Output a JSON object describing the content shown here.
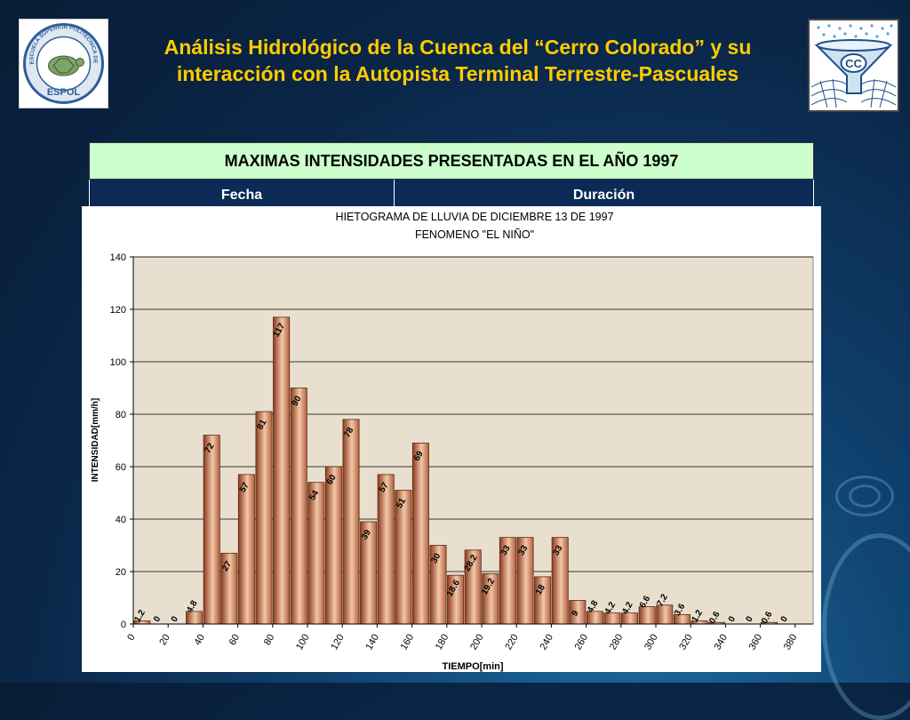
{
  "header": {
    "title_line1": "Análisis Hidrológico de la Cuenca del “Cerro Colorado” y su",
    "title_line2": "interacción con la Autopista Terminal Terrestre-Pascuales",
    "left_logo_text_top": "ESCUELA SUPERIOR POLITECNICA DEL LITORAL",
    "left_logo_text_bottom": "ESPOL",
    "right_logo_letters": "CC"
  },
  "table": {
    "title": "MAXIMAS INTENSIDADES PRESENTADAS EN EL AÑO 1997",
    "columns": [
      "Fecha",
      "Duración"
    ]
  },
  "colors": {
    "title": "#ffcc00",
    "table_head": "#ccffcc",
    "table_cols": "#0b2a55",
    "plot_bg": "#e8dfcf",
    "bar_dark": "#8b3a1e",
    "bar_light": "#f3c8a8"
  },
  "chart_data": {
    "type": "bar",
    "title": "HIETOGRAMA DE LLUVIA DE DICIEMBRE 13 DE 1997",
    "subtitle": "FENOMENO \"EL NIÑO\"",
    "xlabel": "TIEMPO[min]",
    "ylabel": "INTENSIDAD[mm/h]",
    "ylim": [
      0,
      140
    ],
    "yticks": [
      0,
      20,
      40,
      60,
      80,
      100,
      120,
      140
    ],
    "xticks": [
      0,
      20,
      40,
      60,
      80,
      100,
      120,
      140,
      160,
      180,
      200,
      220,
      240,
      260,
      280,
      300,
      320,
      340,
      360,
      380
    ],
    "grid": true,
    "values": [
      1.2,
      0,
      0,
      4.8,
      72,
      27,
      57,
      81,
      117,
      90,
      54,
      60,
      78,
      39,
      57,
      51,
      69,
      30,
      18.6,
      28.2,
      19.2,
      33,
      33,
      18,
      33,
      9,
      4.8,
      4.2,
      4.2,
      6.6,
      7.2,
      3.6,
      1.2,
      0.6,
      0,
      0,
      0.6,
      0
    ],
    "labels": [
      "1.2",
      "0",
      "0",
      "4.8",
      "72",
      "27",
      "57",
      "81",
      "117",
      "90",
      "54",
      "60",
      "78",
      "39",
      "57",
      "51",
      "69",
      "30",
      "18.6",
      "28.2",
      "19.2",
      "33",
      "33",
      "18",
      "33",
      "9",
      "4.8",
      "4.2",
      "4.2",
      "6.6",
      "7.2",
      "3.6",
      "1.2",
      "0.6",
      "0",
      "0",
      "0.6",
      "0"
    ]
  }
}
